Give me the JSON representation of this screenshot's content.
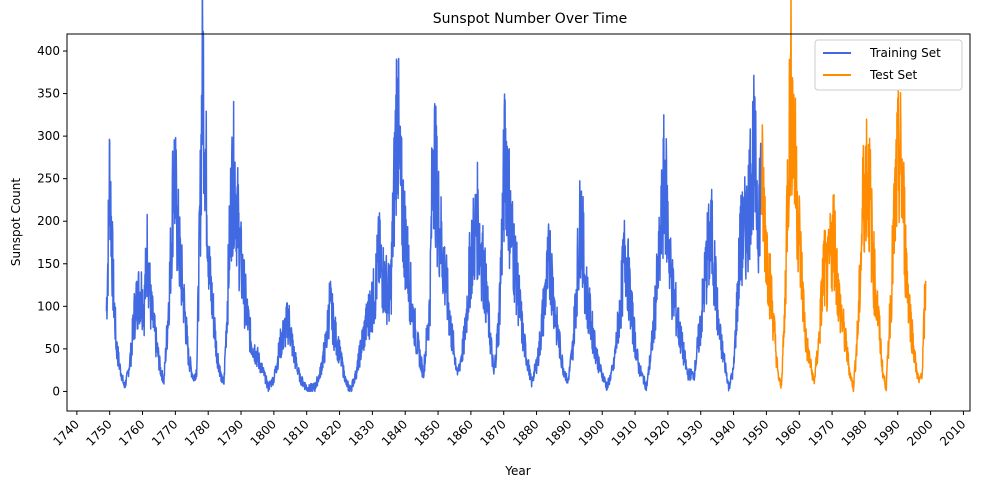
{
  "chart_data": {
    "type": "line",
    "title": "Sunspot Number Over Time",
    "xlabel": "Year",
    "ylabel": "Sunspot Count",
    "xlim": [
      1737,
      2012
    ],
    "ylim": [
      -23,
      420
    ],
    "xticks": [
      1740,
      1750,
      1760,
      1770,
      1780,
      1790,
      1800,
      1810,
      1820,
      1830,
      1840,
      1850,
      1860,
      1870,
      1880,
      1890,
      1900,
      1910,
      1920,
      1930,
      1940,
      1950,
      1960,
      1970,
      1980,
      1990,
      2000,
      2010
    ],
    "yticks": [
      0,
      50,
      100,
      150,
      200,
      250,
      300,
      350,
      400
    ],
    "legend_position": "top-right",
    "grid": false,
    "series": [
      {
        "name": "Training Set",
        "color": "#4169e1",
        "x": [
          1749.0,
          1749.5,
          1750.0,
          1751.0,
          1752.0,
          1753.0,
          1754.5,
          1755.5,
          1756.5,
          1757.5,
          1758.5,
          1759.5,
          1760.5,
          1761.5,
          1762.5,
          1764.0,
          1765.5,
          1766.5,
          1767.5,
          1768.5,
          1769.5,
          1770.5,
          1771.5,
          1772.5,
          1774.0,
          1775.5,
          1776.5,
          1777.5,
          1778.3,
          1779.5,
          1780.5,
          1781.5,
          1782.5,
          1784.0,
          1784.8,
          1786.0,
          1787.0,
          1788.0,
          1789.0,
          1790.0,
          1791.5,
          1793.0,
          1795.0,
          1797.0,
          1798.3,
          1800.0,
          1802.0,
          1804.5,
          1806.0,
          1808.0,
          1810.5,
          1812.5,
          1814.0,
          1816.0,
          1817.0,
          1818.5,
          1820.0,
          1822.0,
          1823.3,
          1825.0,
          1827.0,
          1829.5,
          1830.5,
          1832.0,
          1833.5,
          1835.5,
          1836.5,
          1837.5,
          1838.5,
          1840.0,
          1842.0,
          1843.5,
          1845.5,
          1847.5,
          1848.5,
          1850.0,
          1852.0,
          1854.0,
          1856.0,
          1858.0,
          1860.0,
          1862.0,
          1864.0,
          1867.0,
          1868.5,
          1870.5,
          1872.0,
          1874.0,
          1876.0,
          1878.5,
          1880.5,
          1882.5,
          1884.0,
          1886.0,
          1888.0,
          1889.5,
          1891.0,
          1893.5,
          1895.0,
          1897.0,
          1899.0,
          1901.5,
          1903.5,
          1905.5,
          1907.0,
          1909.0,
          1911.0,
          1913.5,
          1915.0,
          1917.5,
          1919.0,
          1921.0,
          1923.5,
          1926.0,
          1928.0,
          1930.0,
          1932.0,
          1933.5,
          1935.5,
          1937.5,
          1938.5,
          1940.0,
          1942.0,
          1944.0,
          1946.0,
          1947.5,
          1948.5
        ],
        "values": [
          95,
          160,
          265,
          130,
          55,
          30,
          5,
          20,
          45,
          90,
          110,
          120,
          100,
          170,
          100,
          60,
          25,
          12,
          70,
          150,
          265,
          200,
          150,
          110,
          40,
          15,
          25,
          200,
          398,
          240,
          130,
          95,
          50,
          15,
          10,
          120,
          230,
          260,
          200,
          150,
          100,
          60,
          40,
          20,
          5,
          15,
          55,
          85,
          45,
          15,
          2,
          5,
          20,
          60,
          105,
          70,
          45,
          10,
          2,
          20,
          60,
          100,
          110,
          160,
          130,
          110,
          220,
          344,
          240,
          180,
          100,
          60,
          20,
          100,
          300,
          210,
          140,
          70,
          20,
          60,
          160,
          200,
          140,
          20,
          80,
          293,
          200,
          130,
          60,
          10,
          40,
          110,
          160,
          80,
          30,
          10,
          50,
          210,
          120,
          70,
          30,
          5,
          30,
          100,
          170,
          90,
          30,
          5,
          50,
          160,
          257,
          130,
          70,
          20,
          20,
          80,
          160,
          180,
          70,
          30,
          5,
          25,
          170,
          195,
          285,
          210,
          250
        ]
      },
      {
        "name": "Test Set",
        "color": "#ff8c00",
        "x": [
          1948.5,
          1949.5,
          1950.5,
          1952.0,
          1953.5,
          1954.5,
          1955.5,
          1956.5,
          1957.5,
          1958.5,
          1959.5,
          1960.5,
          1962.0,
          1963.5,
          1964.5,
          1966.0,
          1967.5,
          1968.5,
          1969.5,
          1970.5,
          1972.0,
          1974.0,
          1975.5,
          1976.5,
          1978.0,
          1979.5,
          1980.5,
          1981.5,
          1982.5,
          1984.0,
          1985.5,
          1986.5,
          1988.0,
          1989.5,
          1990.5,
          1991.5,
          1992.5,
          1994.0,
          1995.5,
          1996.5,
          1997.5,
          1998.5
        ],
        "values": [
          250,
          200,
          150,
          90,
          20,
          5,
          80,
          250,
          360,
          280,
          220,
          150,
          60,
          30,
          10,
          60,
          150,
          130,
          160,
          190,
          110,
          60,
          20,
          5,
          80,
          230,
          260,
          230,
          150,
          90,
          20,
          5,
          120,
          240,
          280,
          240,
          150,
          80,
          30,
          10,
          25,
          130
        ]
      }
    ]
  }
}
